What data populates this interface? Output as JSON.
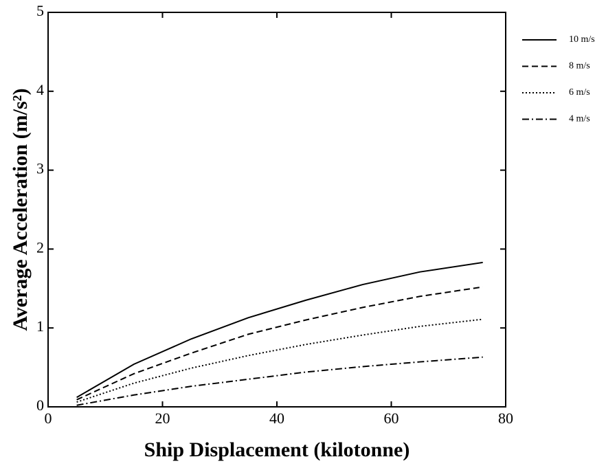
{
  "chart_data": {
    "type": "line",
    "xlabel": "Ship Displacement (kilotonne)",
    "ylabel": "Average Acceleration (m/s²)",
    "x": [
      5,
      15,
      25,
      35,
      45,
      55,
      65,
      76
    ],
    "series": [
      {
        "name": "10 m/s",
        "color": "#000000",
        "dash": "solid",
        "values": [
          0.12,
          0.54,
          0.86,
          1.13,
          1.35,
          1.55,
          1.71,
          1.83
        ]
      },
      {
        "name": "8 m/s",
        "color": "#000000",
        "dash": "dashed",
        "values": [
          0.09,
          0.42,
          0.68,
          0.92,
          1.1,
          1.26,
          1.4,
          1.52
        ]
      },
      {
        "name": "6 m/s",
        "color": "#000000",
        "dash": "dotted",
        "values": [
          0.06,
          0.3,
          0.49,
          0.65,
          0.79,
          0.91,
          1.02,
          1.11
        ]
      },
      {
        "name": "4 m/s",
        "color": "#000000",
        "dash": "dashdot",
        "values": [
          0.02,
          0.15,
          0.26,
          0.35,
          0.44,
          0.51,
          0.57,
          0.63
        ]
      }
    ],
    "xlim": [
      0,
      80
    ],
    "xticks": [
      0,
      20,
      40,
      60,
      80
    ],
    "ylim": [
      0,
      5
    ],
    "yticks": [
      0,
      1,
      2,
      3,
      4,
      5
    ],
    "grid": false,
    "legend": "right"
  }
}
